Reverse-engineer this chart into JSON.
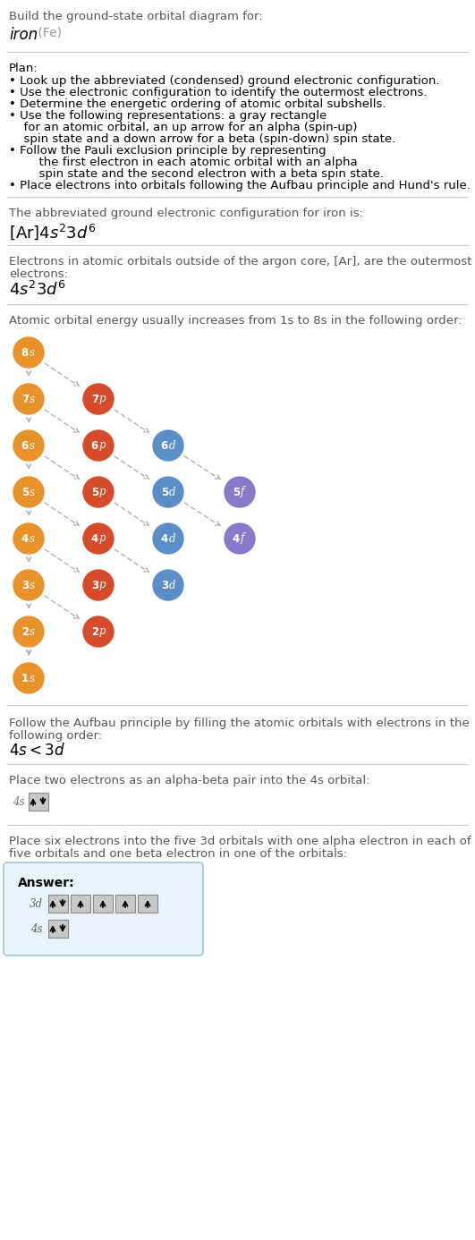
{
  "title_line1": "Build the ground-state orbital diagram for:",
  "title_line2": "iron",
  "title_line2_suffix": " (Fe)",
  "section1_title": "Plan:",
  "section1_bullets": [
    "Look up the abbreviated (condensed) ground electronic configuration.",
    "Use the electronic configuration to identify the outermost electrons.",
    "Determine the energetic ordering of atomic orbital subshells.",
    "Use the following representations: a gray rectangle\n  for an atomic orbital, an up arrow for an alpha (spin-up)\n  spin state and a down arrow for a beta (spin-down) spin state.",
    "Follow the Pauli exclusion principle by representing\n      the first electron in each atomic orbital with an alpha\n      spin state and the second electron with a beta spin state.",
    "Place electrons into orbitals following the Aufbau principle and Hund's rule."
  ],
  "section2_text": "The abbreviated ground electronic configuration for iron is:",
  "section3_text": "Electrons in atomic orbitals outside of the argon core, [Ar], are the outermost\nelectrons:",
  "section4_text": "Atomic orbital energy usually increases from 1s to 8s in the following order:",
  "orbitals": [
    {
      "label": "8s",
      "col": 0,
      "row": 0,
      "color": "#E8932A"
    },
    {
      "label": "7s",
      "col": 0,
      "row": 1,
      "color": "#E8932A"
    },
    {
      "label": "7p",
      "col": 1,
      "row": 1,
      "color": "#D64B2A"
    },
    {
      "label": "6s",
      "col": 0,
      "row": 2,
      "color": "#E8932A"
    },
    {
      "label": "6p",
      "col": 1,
      "row": 2,
      "color": "#D64B2A"
    },
    {
      "label": "6d",
      "col": 2,
      "row": 2,
      "color": "#5B8DC8"
    },
    {
      "label": "5s",
      "col": 0,
      "row": 3,
      "color": "#E8932A"
    },
    {
      "label": "5p",
      "col": 1,
      "row": 3,
      "color": "#D64B2A"
    },
    {
      "label": "5d",
      "col": 2,
      "row": 3,
      "color": "#5B8DC8"
    },
    {
      "label": "5f",
      "col": 3,
      "row": 3,
      "color": "#8B78C8"
    },
    {
      "label": "4s",
      "col": 0,
      "row": 4,
      "color": "#E8932A"
    },
    {
      "label": "4p",
      "col": 1,
      "row": 4,
      "color": "#D64B2A"
    },
    {
      "label": "4d",
      "col": 2,
      "row": 4,
      "color": "#5B8DC8"
    },
    {
      "label": "4f",
      "col": 3,
      "row": 4,
      "color": "#8B78C8"
    },
    {
      "label": "3s",
      "col": 0,
      "row": 5,
      "color": "#E8932A"
    },
    {
      "label": "3p",
      "col": 1,
      "row": 5,
      "color": "#D64B2A"
    },
    {
      "label": "3d",
      "col": 2,
      "row": 5,
      "color": "#5B8DC8"
    },
    {
      "label": "2s",
      "col": 0,
      "row": 6,
      "color": "#E8932A"
    },
    {
      "label": "2p",
      "col": 1,
      "row": 6,
      "color": "#D64B2A"
    },
    {
      "label": "1s",
      "col": 0,
      "row": 7,
      "color": "#E8932A"
    }
  ],
  "diagonal_arrows": [
    [
      "8s",
      "7p"
    ],
    [
      "7s",
      "6p"
    ],
    [
      "7p",
      "6d"
    ],
    [
      "6s",
      "5p"
    ],
    [
      "6p",
      "5d"
    ],
    [
      "6d",
      "5f"
    ],
    [
      "5s",
      "4p"
    ],
    [
      "5p",
      "4d"
    ],
    [
      "5d",
      "4f"
    ],
    [
      "4s",
      "3p"
    ],
    [
      "4p",
      "3d"
    ],
    [
      "3s",
      "2p"
    ],
    [
      "2s",
      "1s"
    ]
  ],
  "vertical_arrows": [
    [
      "8s",
      "7s"
    ],
    [
      "7s",
      "6s"
    ],
    [
      "6s",
      "5s"
    ],
    [
      "5s",
      "4s"
    ],
    [
      "4s",
      "3s"
    ],
    [
      "3s",
      "2s"
    ],
    [
      "2s",
      "1s"
    ]
  ],
  "section5_text": "Follow the Aufbau principle by filling the atomic orbitals with electrons in the\nfollowing order:",
  "section6_text": "Place two electrons as an alpha-beta pair into the 4s orbital:",
  "section7_text": "Place six electrons into the five 3d orbitals with one alpha electron in each of the\nfive orbitals and one beta electron in one of the orbitals:",
  "answer_box_color": "#E8F4FB",
  "answer_box_border": "#A0C8DC",
  "orbital_box_color": "#C8C8C8",
  "bg_color": "#FFFFFF",
  "separator_color": "#CCCCCC",
  "text_color": "#555555",
  "dark_color": "#000000"
}
